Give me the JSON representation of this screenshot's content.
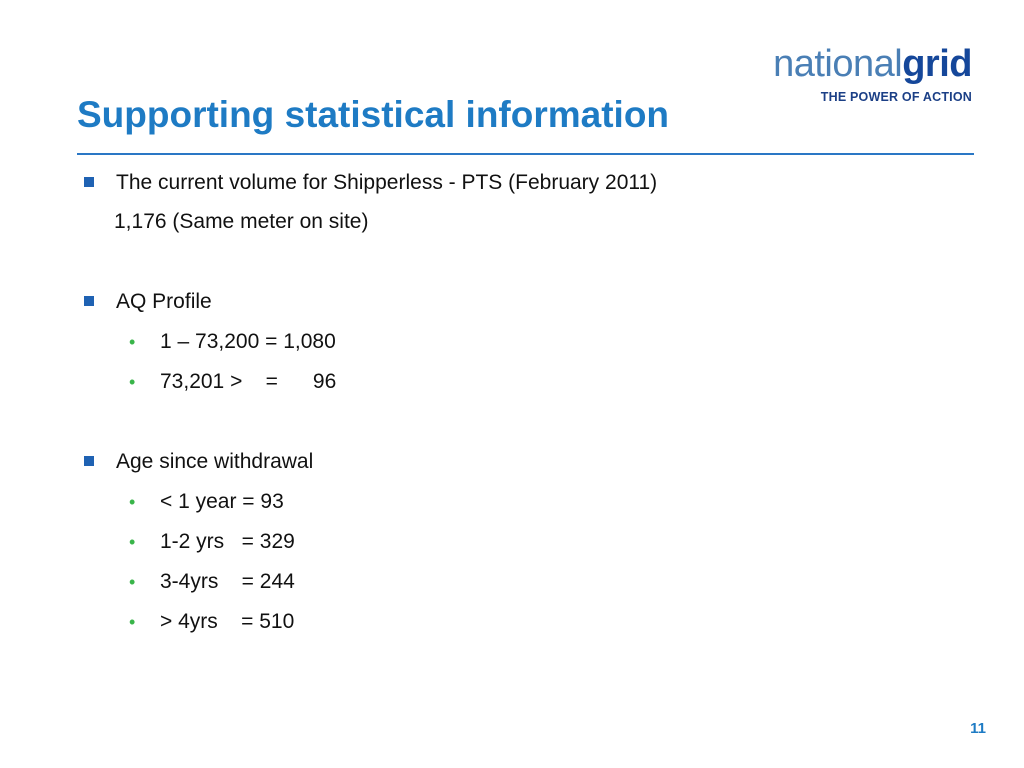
{
  "logo": {
    "word_light": "national",
    "word_bold": "grid",
    "tagline": "THE POWER OF ACTION"
  },
  "title": "Supporting statistical information",
  "content": {
    "bullet1": "The current volume for Shipperless - PTS (February 2011)",
    "bullet1_value": "1,176 (Same meter on site)",
    "bullet2": "AQ Profile",
    "aq_items": [
      "1 – 73,200 = 1,080",
      "73,201 >    =      96"
    ],
    "bullet3": "Age since withdrawal",
    "age_items": [
      "< 1 year = 93",
      "1-2 yrs   = 329",
      "3-4yrs    = 244",
      "> 4yrs    = 510"
    ],
    "bullet_marker": "•"
  },
  "page_number": "11",
  "colors": {
    "title": "#1e7bc4",
    "rule": "#2a77c5",
    "square_bullet": "#1f62b3",
    "sub_bullet": "#39b54a"
  }
}
